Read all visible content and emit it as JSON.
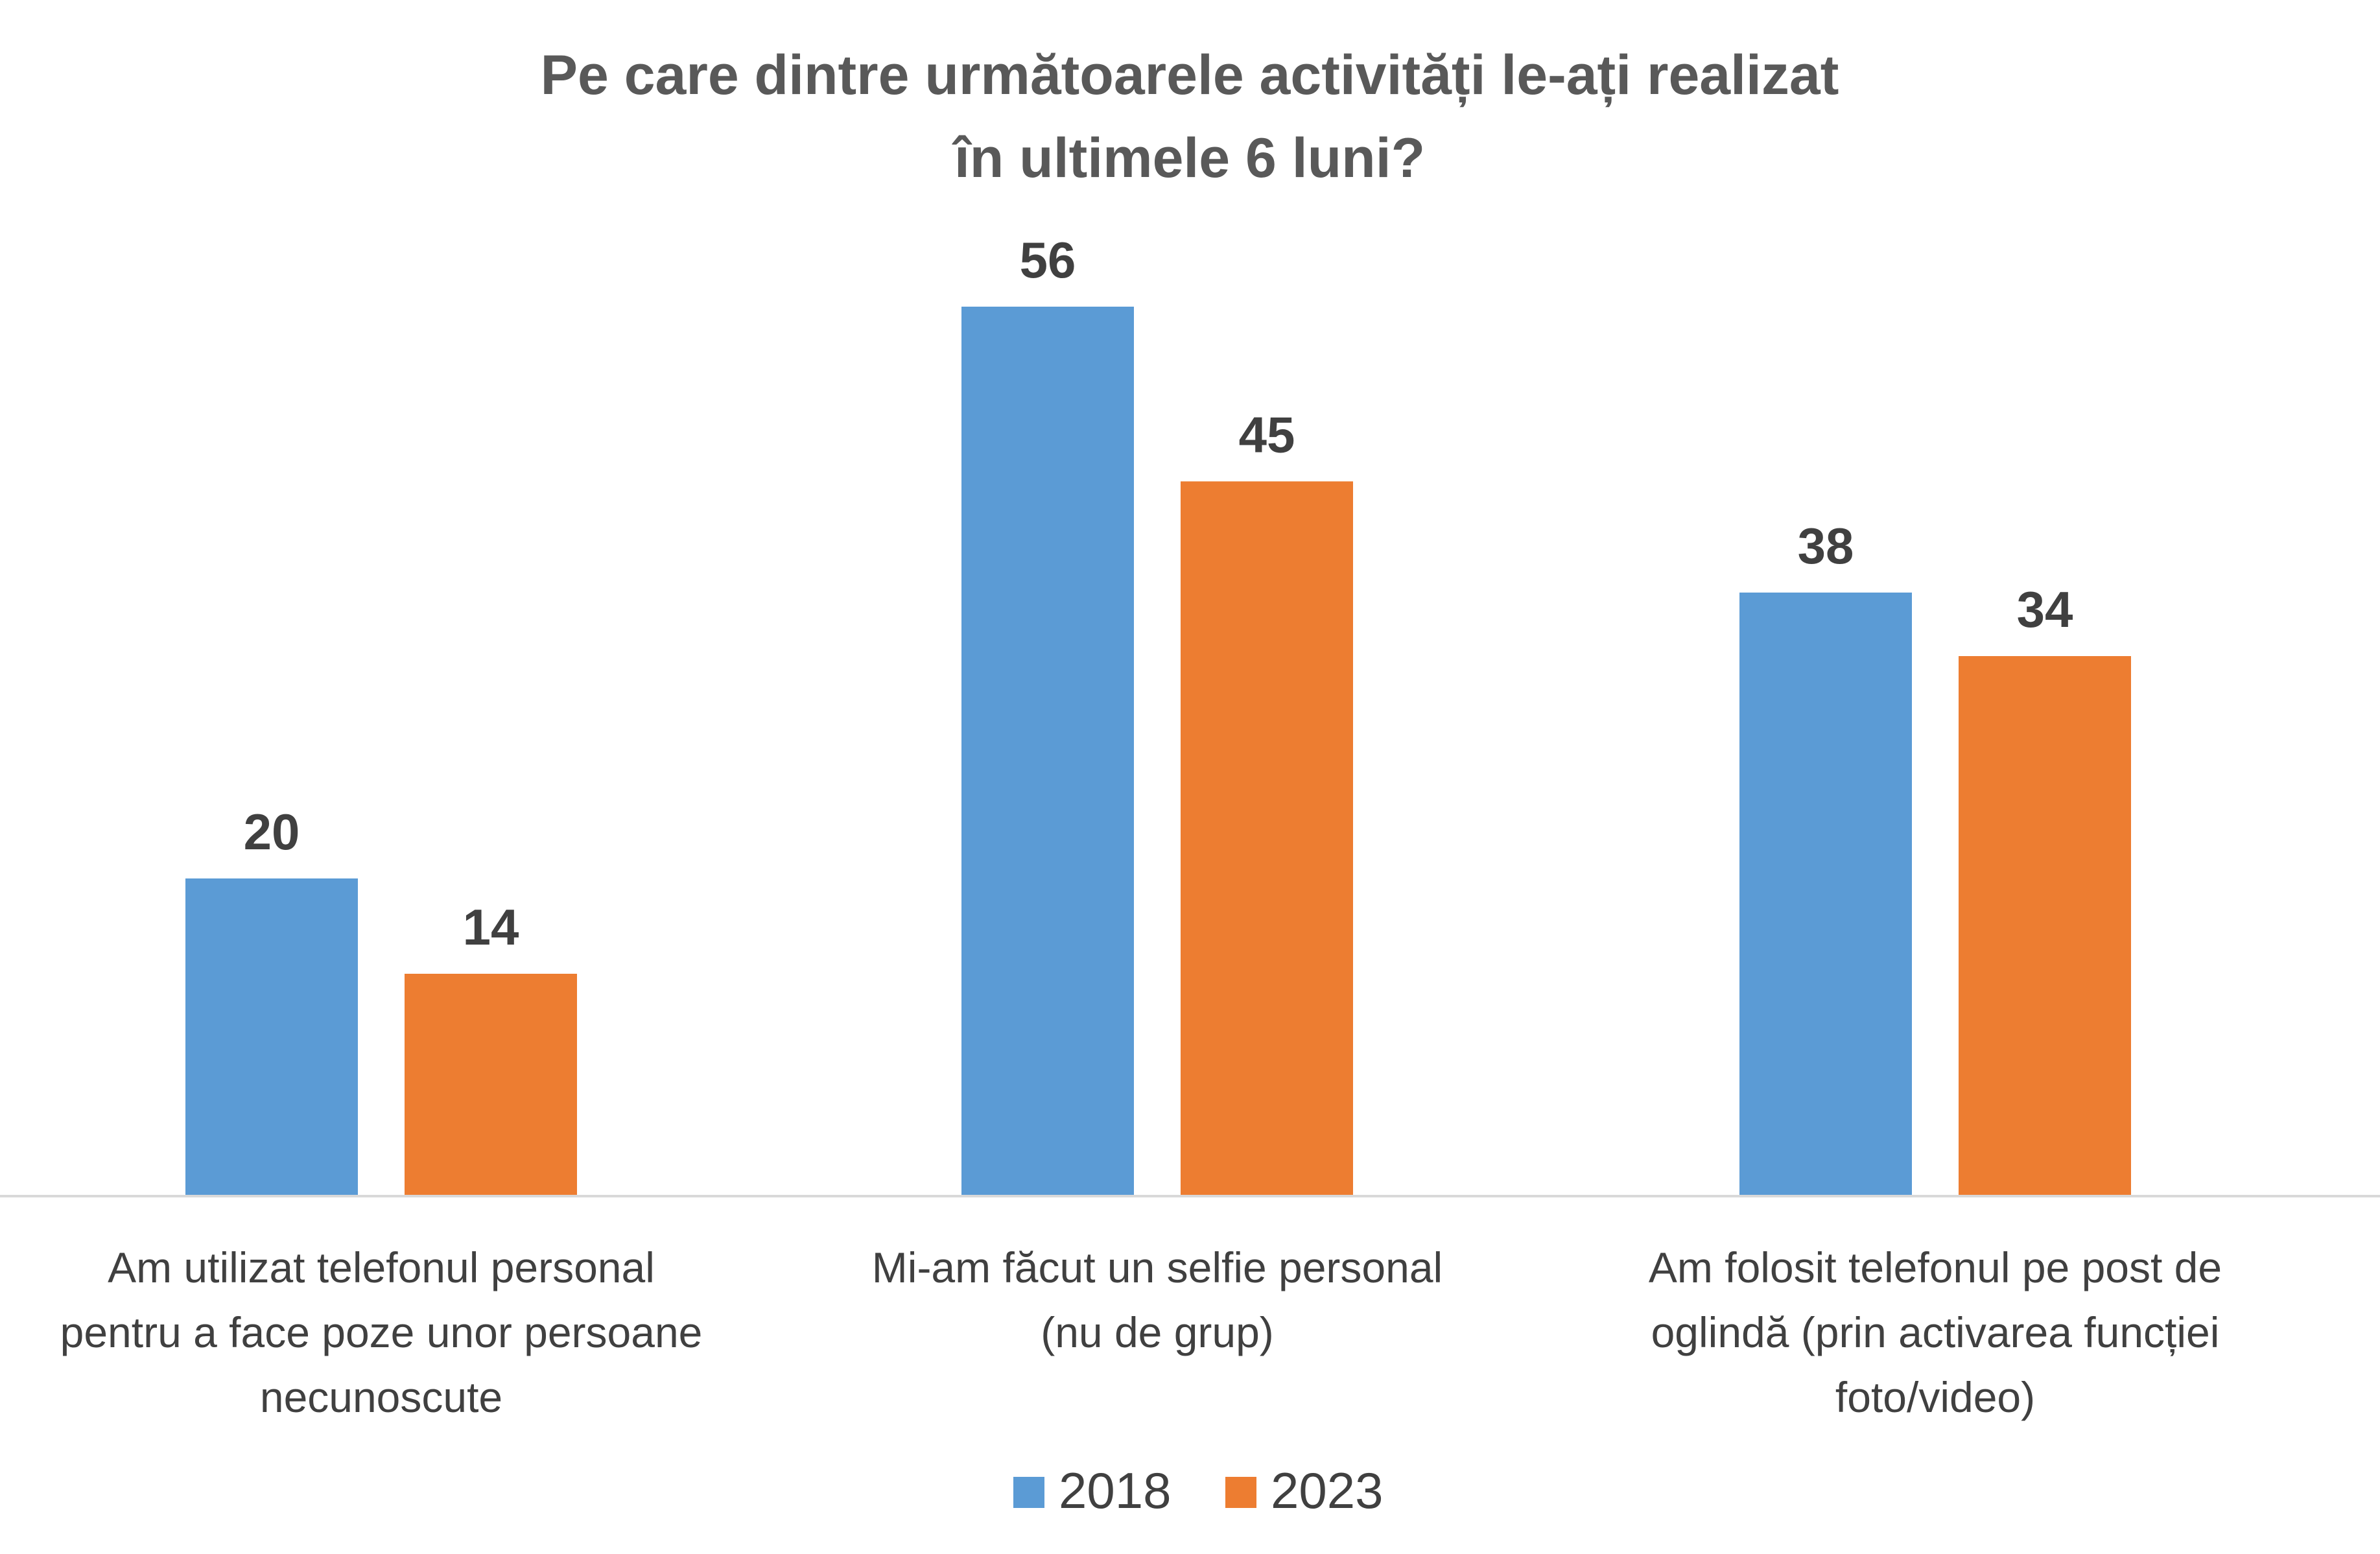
{
  "chart_data": {
    "type": "bar",
    "title_lines": [
      "Pe care dintre următoarele activități le-ați realizat",
      "în ultimele 6 luni?"
    ],
    "categories": [
      [
        "Am utilizat telefonul personal",
        "pentru a face poze unor persoane",
        "necunoscute"
      ],
      [
        "Mi-am făcut un selfie personal",
        "(nu de grup)"
      ],
      [
        "Am folosit telefonul pe post de",
        "oglindă (prin activarea funcției",
        "foto/video)"
      ]
    ],
    "series": [
      {
        "name": "2018",
        "color": "#5B9BD5",
        "values": [
          20,
          56,
          38
        ]
      },
      {
        "name": "2023",
        "color": "#ED7D31",
        "values": [
          14,
          45,
          34
        ]
      }
    ],
    "ylim": [
      0,
      60
    ],
    "grid": false,
    "legend_position": "bottom"
  }
}
